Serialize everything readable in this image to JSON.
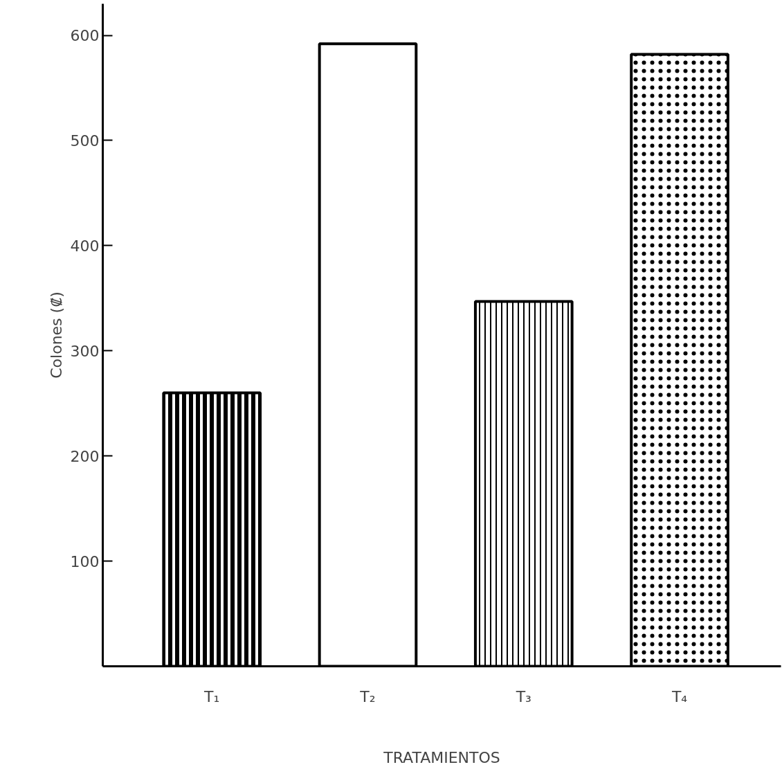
{
  "chart_data": {
    "type": "bar",
    "xlabel": "TRATAMIENTOS",
    "ylabel": "Colones (₡)",
    "categories": [
      "T₁",
      "T₂",
      "T₃",
      "T₄"
    ],
    "values": [
      260,
      592,
      347,
      582
    ],
    "color": "#ffffff",
    "ylim": [
      0,
      630
    ],
    "yticks": [
      100,
      200,
      300,
      400,
      500,
      600
    ],
    "grid": false
  }
}
